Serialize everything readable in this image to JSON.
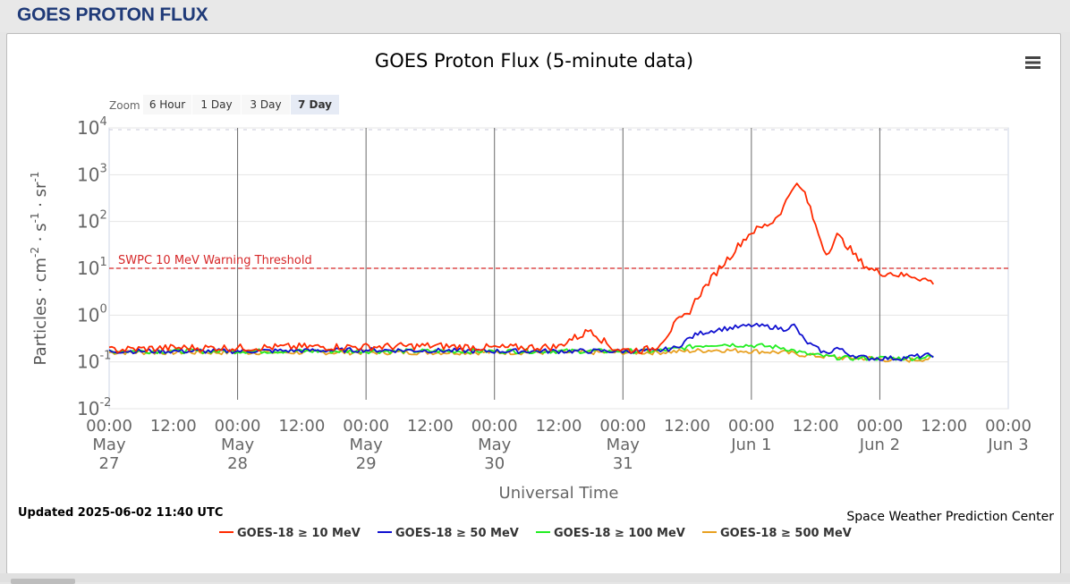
{
  "page": {
    "title": "GOES PROTON FLUX"
  },
  "toolbar": {
    "zoom_label": "Zoom",
    "zoom_buttons": [
      "6 Hour",
      "1 Day",
      "3 Day",
      "7 Day"
    ],
    "zoom_selected": "7 Day",
    "menu_icon": "hamburger-menu-icon"
  },
  "footer": {
    "updated": "Updated 2025-06-02 11:40 UTC",
    "credit": "Space Weather Prediction Center"
  },
  "chart_data": {
    "type": "line",
    "title": "GOES Proton Flux (5-minute data)",
    "xlabel": "Universal Time",
    "ylabel_parts": [
      "Particles · cm",
      "-2",
      " · s",
      "-1",
      " · sr",
      "-1"
    ],
    "y_scale": "log",
    "ylim": [
      0.01,
      10000
    ],
    "y_ticks": [
      {
        "base": "10",
        "exp": "4"
      },
      {
        "base": "10",
        "exp": "3"
      },
      {
        "base": "10",
        "exp": "2"
      },
      {
        "base": "10",
        "exp": "1"
      },
      {
        "base": "10",
        "exp": "0"
      },
      {
        "base": "10",
        "exp": "-1"
      },
      {
        "base": "10",
        "exp": "-2"
      }
    ],
    "xlim": [
      "2025-05-27 00:00",
      "2025-06-03 00:00"
    ],
    "x_ticks": [
      {
        "time": "00:00",
        "date": [
          "May",
          "27"
        ]
      },
      {
        "time": "12:00",
        "date": []
      },
      {
        "time": "00:00",
        "date": [
          "May",
          "28"
        ]
      },
      {
        "time": "12:00",
        "date": []
      },
      {
        "time": "00:00",
        "date": [
          "May",
          "29"
        ]
      },
      {
        "time": "12:00",
        "date": []
      },
      {
        "time": "00:00",
        "date": [
          "May",
          "30"
        ]
      },
      {
        "time": "12:00",
        "date": []
      },
      {
        "time": "00:00",
        "date": [
          "May",
          "31"
        ]
      },
      {
        "time": "12:00",
        "date": []
      },
      {
        "time": "00:00",
        "date": [
          "Jun 1"
        ]
      },
      {
        "time": "12:00",
        "date": []
      },
      {
        "time": "00:00",
        "date": [
          "Jun 2"
        ]
      },
      {
        "time": "12:00",
        "date": []
      },
      {
        "time": "00:00",
        "date": [
          "Jun 3"
        ]
      }
    ],
    "threshold": {
      "label": "SWPC 10 MeV Warning Threshold",
      "value": 10,
      "color": "#d62728"
    },
    "grid": true,
    "legend_position": "bottom-center",
    "series": [
      {
        "name": "GOES-18 ≥ 10 MeV",
        "color": "#ff2a00",
        "x_hours": [
          0,
          12,
          24,
          36,
          48,
          60,
          72,
          84,
          86,
          88,
          90,
          92,
          94,
          96,
          98,
          100,
          102,
          104,
          106,
          108,
          110,
          112,
          114,
          116,
          118,
          120,
          122,
          124,
          126,
          128,
          130,
          132,
          134,
          136,
          138,
          140,
          142,
          144,
          146,
          148,
          150,
          152,
          154
        ],
        "values": [
          0.18,
          0.2,
          0.2,
          0.21,
          0.21,
          0.22,
          0.2,
          0.21,
          0.3,
          0.36,
          0.5,
          0.3,
          0.2,
          0.18,
          0.18,
          0.18,
          0.2,
          0.35,
          0.7,
          1.0,
          2.5,
          5.0,
          10,
          18,
          35,
          60,
          75,
          100,
          200,
          650,
          400,
          80,
          20,
          50,
          30,
          15,
          10,
          8,
          8,
          7,
          7,
          6,
          5
        ]
      },
      {
        "name": "GOES-18 ≥ 50 MeV",
        "color": "#1010d0",
        "x_hours": [
          0,
          24,
          48,
          72,
          96,
          102,
          106,
          108,
          110,
          114,
          118,
          120,
          124,
          126,
          128,
          130,
          132,
          134,
          136,
          138,
          140,
          142,
          144,
          146,
          148,
          150,
          154
        ],
        "values": [
          0.17,
          0.17,
          0.18,
          0.17,
          0.17,
          0.17,
          0.2,
          0.3,
          0.4,
          0.5,
          0.56,
          0.6,
          0.56,
          0.5,
          0.6,
          0.28,
          0.2,
          0.15,
          0.2,
          0.15,
          0.13,
          0.12,
          0.12,
          0.12,
          0.12,
          0.13,
          0.14
        ]
      },
      {
        "name": "GOES-18 ≥ 100 MeV",
        "color": "#22ee22",
        "x_hours": [
          0,
          24,
          48,
          72,
          96,
          102,
          106,
          110,
          114,
          118,
          122,
          126,
          130,
          134,
          138,
          142,
          146,
          150,
          154
        ],
        "values": [
          0.17,
          0.17,
          0.17,
          0.17,
          0.17,
          0.17,
          0.19,
          0.22,
          0.24,
          0.23,
          0.22,
          0.2,
          0.15,
          0.13,
          0.12,
          0.12,
          0.12,
          0.12,
          0.13
        ]
      },
      {
        "name": "GOES-18 ≥ 500 MeV",
        "color": "#e8a020",
        "x_hours": [
          0,
          24,
          48,
          72,
          96,
          102,
          108,
          114,
          120,
          126,
          130,
          134,
          138,
          142,
          146,
          150,
          154
        ],
        "values": [
          0.16,
          0.16,
          0.16,
          0.16,
          0.16,
          0.16,
          0.17,
          0.18,
          0.17,
          0.16,
          0.14,
          0.13,
          0.12,
          0.12,
          0.11,
          0.11,
          0.12
        ]
      }
    ]
  }
}
